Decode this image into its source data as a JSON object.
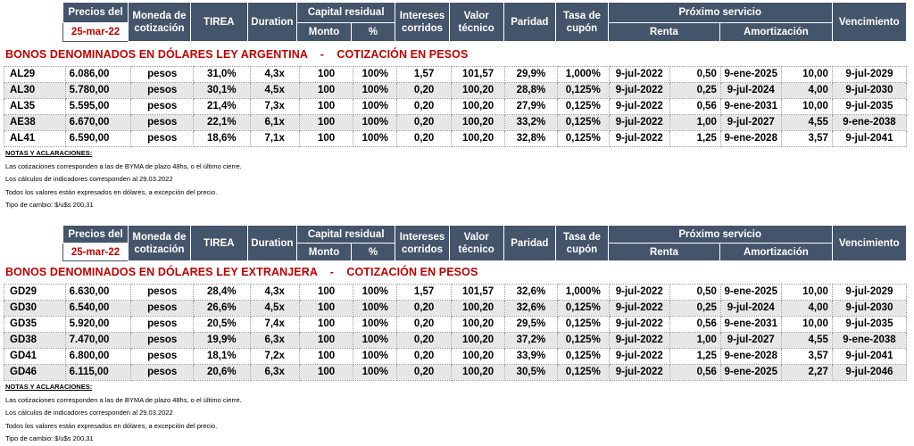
{
  "header": {
    "precios_del": "Precios del",
    "date": "25-mar-22",
    "moneda": "Moneda de cotización",
    "tirea": "TIREA",
    "duration": "Duration",
    "capital_residual": "Capital residual",
    "monto": "Monto",
    "pct": "%",
    "intereses": "Intereses corridos",
    "valor": "Valor técnico",
    "paridad": "Paridad",
    "tasa": "Tasa de cupón",
    "proximo": "Próximo servicio",
    "renta": "Renta",
    "amortizacion": "Amortización",
    "vencimiento": "Vencimiento"
  },
  "sections": [
    {
      "title": "BONOS DENOMINADOS EN DÓLARES LEY ARGENTINA    -    COTIZACIÓN EN PESOS",
      "rows": [
        {
          "ticker": "AL29",
          "precio": "6.086,00",
          "moneda": "pesos",
          "tirea": "31,0%",
          "duration": "4,3x",
          "monto": "100",
          "pct": "100%",
          "intereses": "1,57",
          "valor": "101,57",
          "paridad": "29,9%",
          "tasa": "1,000%",
          "renta_fecha": "9-jul-2022",
          "renta_monto": "0,50",
          "amort_fecha": "9-ene-2025",
          "amort_monto": "10,00",
          "vencimiento": "9-jul-2029"
        },
        {
          "ticker": "AL30",
          "precio": "5.780,00",
          "moneda": "pesos",
          "tirea": "30,1%",
          "duration": "4,5x",
          "monto": "100",
          "pct": "100%",
          "intereses": "0,20",
          "valor": "100,20",
          "paridad": "28,8%",
          "tasa": "0,125%",
          "renta_fecha": "9-jul-2022",
          "renta_monto": "0,25",
          "amort_fecha": "9-jul-2024",
          "amort_monto": "4,00",
          "vencimiento": "9-jul-2030"
        },
        {
          "ticker": "AL35",
          "precio": "5.595,00",
          "moneda": "pesos",
          "tirea": "21,4%",
          "duration": "7,3x",
          "monto": "100",
          "pct": "100%",
          "intereses": "0,20",
          "valor": "100,20",
          "paridad": "27,9%",
          "tasa": "0,125%",
          "renta_fecha": "9-jul-2022",
          "renta_monto": "0,56",
          "amort_fecha": "9-ene-2031",
          "amort_monto": "10,00",
          "vencimiento": "9-jul-2035"
        },
        {
          "ticker": "AE38",
          "precio": "6.670,00",
          "moneda": "pesos",
          "tirea": "22,1%",
          "duration": "6,1x",
          "monto": "100",
          "pct": "100%",
          "intereses": "0,20",
          "valor": "100,20",
          "paridad": "33,2%",
          "tasa": "0,125%",
          "renta_fecha": "9-jul-2022",
          "renta_monto": "1,00",
          "amort_fecha": "9-jul-2027",
          "amort_monto": "4,55",
          "vencimiento": "9-ene-2038"
        },
        {
          "ticker": "AL41",
          "precio": "6.590,00",
          "moneda": "pesos",
          "tirea": "18,6%",
          "duration": "7,1x",
          "monto": "100",
          "pct": "100%",
          "intereses": "0,20",
          "valor": "100,20",
          "paridad": "32,8%",
          "tasa": "0,125%",
          "renta_fecha": "9-jul-2022",
          "renta_monto": "1,25",
          "amort_fecha": "9-ene-2028",
          "amort_monto": "3,57",
          "vencimiento": "9-jul-2041"
        }
      ],
      "notes": {
        "title": "NOTAS Y ACLARACIONES:",
        "lines": [
          "Las cotizaciones corresponden a las de BYMA de plazo 48hs, o el último cierre.",
          "Los cálculos de indicadores corresponden al 29.03.2022",
          "Todos los valores están expresados en dólares, a excepción del precio.",
          "Tipo de cambio:  $/u$s 200,31"
        ]
      }
    },
    {
      "title": "BONOS DENOMINADOS EN DÓLARES LEY EXTRANJERA    -    COTIZACIÓN EN PESOS",
      "rows": [
        {
          "ticker": "GD29",
          "precio": "6.630,00",
          "moneda": "pesos",
          "tirea": "28,4%",
          "duration": "4,3x",
          "monto": "100",
          "pct": "100%",
          "intereses": "1,57",
          "valor": "101,57",
          "paridad": "32,6%",
          "tasa": "1,000%",
          "renta_fecha": "9-jul-2022",
          "renta_monto": "0,50",
          "amort_fecha": "9-ene-2025",
          "amort_monto": "10,00",
          "vencimiento": "9-jul-2029"
        },
        {
          "ticker": "GD30",
          "precio": "6.540,00",
          "moneda": "pesos",
          "tirea": "26,6%",
          "duration": "4,5x",
          "monto": "100",
          "pct": "100%",
          "intereses": "0,20",
          "valor": "100,20",
          "paridad": "32,6%",
          "tasa": "0,125%",
          "renta_fecha": "9-jul-2022",
          "renta_monto": "0,25",
          "amort_fecha": "9-jul-2024",
          "amort_monto": "4,00",
          "vencimiento": "9-jul-2030"
        },
        {
          "ticker": "GD35",
          "precio": "5.920,00",
          "moneda": "pesos",
          "tirea": "20,5%",
          "duration": "7,4x",
          "monto": "100",
          "pct": "100%",
          "intereses": "0,20",
          "valor": "100,20",
          "paridad": "29,5%",
          "tasa": "0,125%",
          "renta_fecha": "9-jul-2022",
          "renta_monto": "0,56",
          "amort_fecha": "9-ene-2031",
          "amort_monto": "10,00",
          "vencimiento": "9-jul-2035"
        },
        {
          "ticker": "GD38",
          "precio": "7.470,00",
          "moneda": "pesos",
          "tirea": "19,9%",
          "duration": "6,3x",
          "monto": "100",
          "pct": "100%",
          "intereses": "0,20",
          "valor": "100,20",
          "paridad": "37,2%",
          "tasa": "0,125%",
          "renta_fecha": "9-jul-2022",
          "renta_monto": "1,00",
          "amort_fecha": "9-jul-2027",
          "amort_monto": "4,55",
          "vencimiento": "9-ene-2038"
        },
        {
          "ticker": "GD41",
          "precio": "6.800,00",
          "moneda": "pesos",
          "tirea": "18,1%",
          "duration": "7,2x",
          "monto": "100",
          "pct": "100%",
          "intereses": "0,20",
          "valor": "100,20",
          "paridad": "33,9%",
          "tasa": "0,125%",
          "renta_fecha": "9-jul-2022",
          "renta_monto": "1,25",
          "amort_fecha": "9-ene-2028",
          "amort_monto": "3,57",
          "vencimiento": "9-jul-2041"
        },
        {
          "ticker": "GD46",
          "precio": "6.115,00",
          "moneda": "pesos",
          "tirea": "20,6%",
          "duration": "6,3x",
          "monto": "100",
          "pct": "100%",
          "intereses": "0,20",
          "valor": "100,20",
          "paridad": "30,5%",
          "tasa": "0,125%",
          "renta_fecha": "9-jul-2022",
          "renta_monto": "0,56",
          "amort_fecha": "9-ene-2025",
          "amort_monto": "2,27",
          "vencimiento": "9-jul-2046"
        }
      ],
      "notes": {
        "title": "NOTAS Y ACLARACIONES:",
        "lines": [
          "Las cotizaciones corresponden a las de BYMA de plazo 48hs, o el último cierre.",
          "Los cálculos de indicadores corresponden al 29.03.2022",
          "Todos los valores están expresados en dólares, a excepción del precio.",
          "Tipo de cambio:  $/u$s 200,31"
        ]
      }
    }
  ]
}
